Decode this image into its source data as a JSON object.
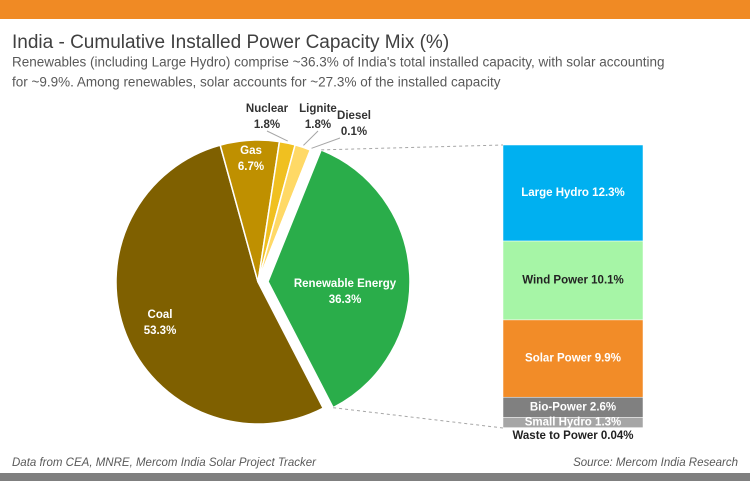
{
  "chart_data": [
    {
      "type": "pie",
      "title": "India - Cumulative Installed Power Capacity Mix (%)",
      "subtitle": [
        "Renewables (including Large Hydro) comprise ~36.3% of India's total installed capacity, with solar accounting",
        "for ~9.9%. Among renewables, solar accounts for ~27.3% of the installed capacity"
      ],
      "categories": [
        "Renewable Energy",
        "Coal",
        "Gas",
        "Nuclear",
        "Lignite",
        "Diesel"
      ],
      "values": [
        36.3,
        53.3,
        6.7,
        1.8,
        1.8,
        0.1
      ],
      "value_labels": [
        "36.3%",
        "53.3%",
        "6.7%",
        "1.8%",
        "1.8%",
        "0.1%"
      ],
      "colors": [
        "#2aad4a",
        "#7f6000",
        "#bf9000",
        "#f0c020",
        "#ffd966",
        "#ffe9a0"
      ]
    },
    {
      "type": "bar",
      "categories": [
        "Large Hydro",
        "Wind Power",
        "Solar Power",
        "Bio-Power",
        "Small Hydro",
        "Waste to Power"
      ],
      "values": [
        12.3,
        10.1,
        9.9,
        2.6,
        1.3,
        0.04
      ],
      "value_labels": [
        "12.3%",
        "10.1%",
        "9.9%",
        "2.6%",
        "1.3%",
        "0.04%"
      ],
      "colors": [
        "#00b0f0",
        "#a6f5a6",
        "#f28c28",
        "#808080",
        "#a6a6a6",
        "#e0e0e0"
      ]
    }
  ],
  "footer": {
    "note": "Data from CEA, MNRE, Mercom India Solar Project Tracker",
    "source": "Source: Mercom India Research"
  }
}
